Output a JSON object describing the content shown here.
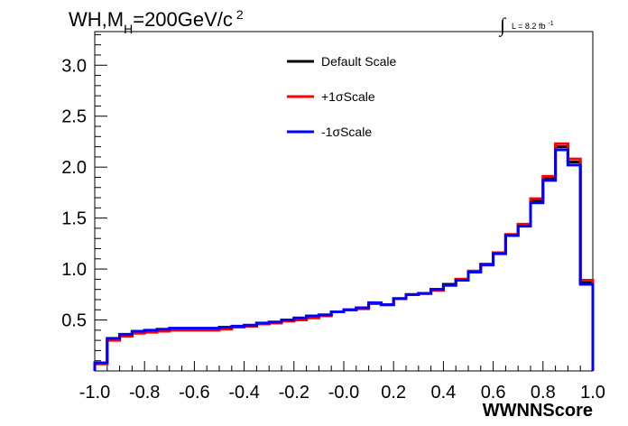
{
  "chart_data": {
    "type": "line",
    "title": {
      "prefix": "WH,M",
      "sub": "H",
      "suffix": "=200GeV/c",
      "sup": "2"
    },
    "lumi": {
      "integral": "∫",
      "text": "L = 8.2 fb",
      "sup": "-1"
    },
    "xlabel": "WWNNScore",
    "ylabel": "",
    "xlim": [
      -1.0,
      1.0
    ],
    "ylim": [
      0,
      3.33
    ],
    "xticks": [
      "-1.0",
      "-0.8",
      "-0.6",
      "-0.4",
      "-0.2",
      "-0.0",
      "0.2",
      "0.4",
      "0.6",
      "0.8",
      "1.0"
    ],
    "yticks": [
      "0.5",
      "1.0",
      "1.5",
      "2.0",
      "2.5",
      "3.0"
    ],
    "legend_position": "top-center",
    "bin_edges": [
      -1.0,
      -0.95,
      -0.9,
      -0.85,
      -0.8,
      -0.75,
      -0.7,
      -0.65,
      -0.6,
      -0.55,
      -0.5,
      -0.45,
      -0.4,
      -0.35,
      -0.3,
      -0.25,
      -0.2,
      -0.15,
      -0.1,
      -0.05,
      0.0,
      0.05,
      0.1,
      0.15,
      0.2,
      0.25,
      0.3,
      0.35,
      0.4,
      0.45,
      0.5,
      0.55,
      0.6,
      0.65,
      0.7,
      0.75,
      0.8,
      0.85,
      0.9,
      0.95,
      1.0
    ],
    "series": [
      {
        "name": "Default Scale",
        "color": "#000000",
        "values": [
          0.07,
          0.31,
          0.35,
          0.38,
          0.39,
          0.4,
          0.41,
          0.41,
          0.41,
          0.41,
          0.42,
          0.43,
          0.44,
          0.46,
          0.47,
          0.49,
          0.51,
          0.53,
          0.55,
          0.58,
          0.6,
          0.62,
          0.66,
          0.65,
          0.71,
          0.75,
          0.76,
          0.8,
          0.85,
          0.9,
          0.98,
          1.05,
          1.16,
          1.33,
          1.43,
          1.67,
          1.89,
          2.2,
          2.05,
          0.87
        ]
      },
      {
        "name": "+1σScale",
        "color": "#ff0000",
        "values": [
          0.07,
          0.3,
          0.34,
          0.37,
          0.38,
          0.39,
          0.4,
          0.4,
          0.4,
          0.4,
          0.41,
          0.43,
          0.44,
          0.46,
          0.47,
          0.49,
          0.5,
          0.52,
          0.54,
          0.58,
          0.6,
          0.61,
          0.66,
          0.65,
          0.71,
          0.75,
          0.76,
          0.79,
          0.84,
          0.9,
          0.98,
          1.05,
          1.16,
          1.34,
          1.44,
          1.69,
          1.91,
          2.23,
          2.08,
          0.89
        ]
      },
      {
        "name": "-1σScale",
        "color": "#0000ff",
        "values": [
          0.08,
          0.32,
          0.36,
          0.39,
          0.4,
          0.41,
          0.42,
          0.42,
          0.42,
          0.42,
          0.43,
          0.44,
          0.45,
          0.47,
          0.48,
          0.5,
          0.52,
          0.54,
          0.55,
          0.58,
          0.6,
          0.62,
          0.67,
          0.65,
          0.71,
          0.75,
          0.76,
          0.8,
          0.84,
          0.89,
          0.97,
          1.04,
          1.15,
          1.33,
          1.42,
          1.65,
          1.87,
          2.17,
          2.02,
          0.85
        ]
      }
    ]
  }
}
